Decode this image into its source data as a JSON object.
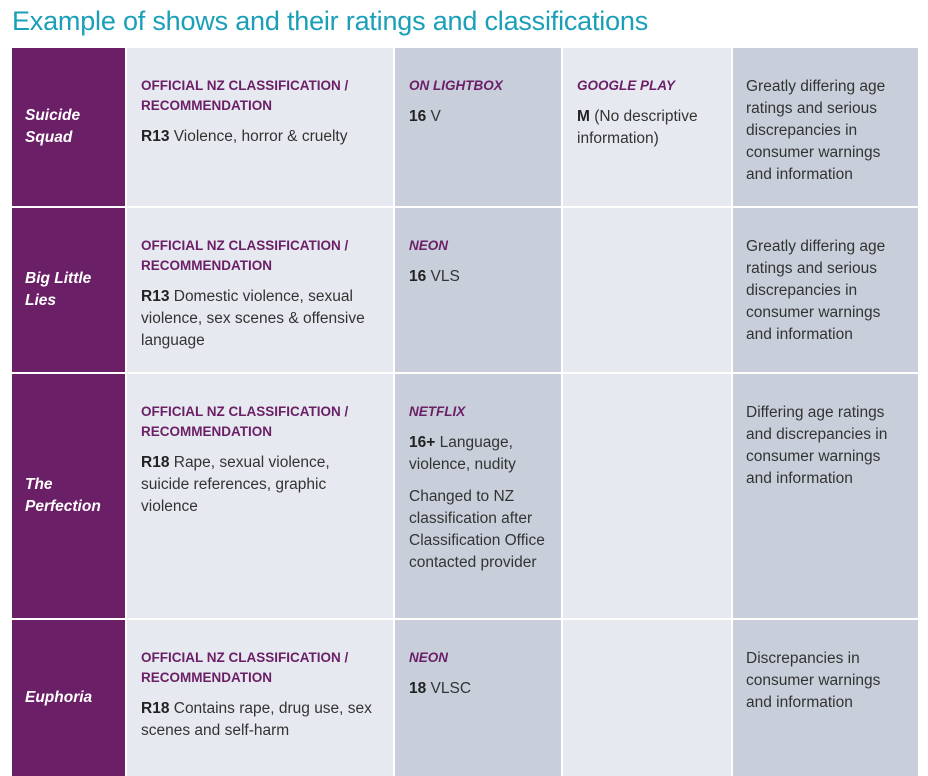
{
  "page_title": "Example of shows and their ratings and classifications",
  "rows": [
    {
      "show": "Suicide Squad",
      "official_heading": "OFFICIAL NZ CLASSIFICATION / RECOMMENDATION",
      "official_code": "R13",
      "official_text": " Violence, horror & cruelty",
      "provider1": "ON LIGHTBOX",
      "provider1_code": "16",
      "provider1_text": " V",
      "provider1_extra": "",
      "provider2": "GOOGLE PLAY",
      "provider2_code": "M",
      "provider2_text": " (No descriptive information)",
      "note": "Greatly differing age ratings and serious discrepancies in consumer warnings and information"
    },
    {
      "show": "Big Little Lies",
      "official_heading": "OFFICIAL NZ CLASSIFICATION / RECOMMENDATION",
      "official_code": "R13",
      "official_text": " Domestic violence, sexual violence, sex scenes & offensive language",
      "provider1": "NEON",
      "provider1_code": "16",
      "provider1_text": " VLS",
      "provider1_extra": "",
      "provider2": "",
      "provider2_code": "",
      "provider2_text": "",
      "note": "Greatly differing age ratings and serious discrepancies in consumer warnings and information"
    },
    {
      "show": "The Perfection",
      "official_heading": "OFFICIAL NZ CLASSIFICATION / RECOMMENDATION",
      "official_code": "R18",
      "official_text": " Rape, sexual violence, suicide references, graphic violence",
      "provider1": "NETFLIX",
      "provider1_code": "16+",
      "provider1_text": " Language, violence, nudity",
      "provider1_extra": "Changed to NZ classification after Classification Office contacted provider",
      "provider2": "",
      "provider2_code": "",
      "provider2_text": "",
      "note": "Differing age ratings and discrepancies in consumer warnings and information"
    },
    {
      "show": "Euphoria",
      "official_heading": "OFFICIAL NZ CLASSIFICATION / RECOMMENDATION",
      "official_code": "R18",
      "official_text": " Contains rape, drug use, sex scenes and self-harm",
      "provider1": "NEON",
      "provider1_code": "18",
      "provider1_text": " VLSC",
      "provider1_extra": "",
      "provider2": "",
      "provider2_code": "",
      "provider2_text": "",
      "note": "Discrepancies in consumer warnings and information"
    }
  ]
}
